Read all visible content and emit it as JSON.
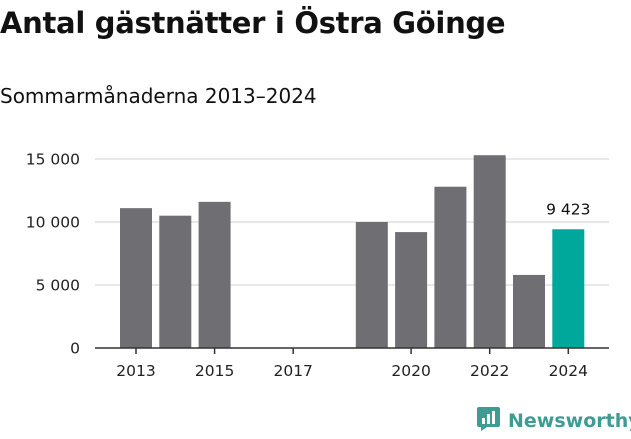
{
  "title": "Antal gästnätter i Östra Göinge",
  "subtitle": "Sommarmånaderna 2013–2024",
  "brand": {
    "name": "Newsworthy",
    "icon": "newsworthy-logo-icon"
  },
  "colors": {
    "bar": "#6f6e73",
    "highlight": "#00a89c",
    "brand": "#3f9c93",
    "grid": "#d9d9d9",
    "axis": "#333333"
  },
  "chart_data": {
    "type": "bar",
    "categories": [
      "2013",
      "2014",
      "2015",
      "2016",
      "2017",
      "2018",
      "2019",
      "2020",
      "2021",
      "2022",
      "2023",
      "2024"
    ],
    "values": [
      11100,
      10500,
      11600,
      null,
      null,
      null,
      10000,
      9200,
      12800,
      15300,
      5800,
      9423
    ],
    "highlight_index": 11,
    "x_tick_labels": [
      "2013",
      "2015",
      "2017",
      "2020",
      "2022",
      "2024"
    ],
    "y_ticks": [
      0,
      5000,
      10000,
      15000
    ],
    "y_tick_labels": [
      "0",
      "5 000",
      "10 000",
      "15 000"
    ],
    "data_labels": [
      {
        "index": 11,
        "text": "9 423"
      }
    ],
    "ylim": [
      0,
      15000
    ],
    "grid": true,
    "legend": "none",
    "xlabel": "",
    "ylabel": ""
  }
}
